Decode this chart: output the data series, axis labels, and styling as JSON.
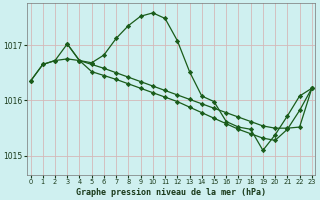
{
  "title": "Graphe pression niveau de la mer (hPa)",
  "bg_color": "#cff0f0",
  "grid_color": "#d4b8b8",
  "line_color": "#1a5c1a",
  "xlim": [
    -0.3,
    23.3
  ],
  "ylim": [
    1014.65,
    1017.75
  ],
  "yticks": [
    1015,
    1016,
    1017
  ],
  "xticks": [
    0,
    1,
    2,
    3,
    4,
    5,
    6,
    7,
    8,
    9,
    10,
    11,
    12,
    13,
    14,
    15,
    16,
    17,
    18,
    19,
    20,
    21,
    22,
    23
  ],
  "series1": {
    "x": [
      0,
      1,
      2,
      3,
      4,
      5,
      6,
      7,
      8,
      9,
      10,
      11,
      12,
      13,
      14,
      15,
      16,
      17,
      18,
      19,
      20,
      21,
      22,
      23
    ],
    "y": [
      1016.35,
      1016.65,
      1016.72,
      1016.75,
      1016.72,
      1016.65,
      1016.58,
      1016.5,
      1016.42,
      1016.34,
      1016.26,
      1016.18,
      1016.1,
      1016.02,
      1015.94,
      1015.86,
      1015.78,
      1015.7,
      1015.62,
      1015.54,
      1015.5,
      1015.5,
      1015.52,
      1016.22
    ]
  },
  "series2": {
    "x": [
      0,
      1,
      2,
      3,
      4,
      5,
      6,
      7,
      8,
      9,
      10,
      11,
      12,
      13,
      14,
      15,
      16,
      17,
      18,
      19,
      20,
      21,
      22,
      23
    ],
    "y": [
      1016.35,
      1016.65,
      1016.72,
      1017.02,
      1016.72,
      1016.68,
      1016.82,
      1017.12,
      1017.35,
      1017.52,
      1017.58,
      1017.48,
      1017.08,
      1016.52,
      1016.08,
      1015.98,
      1015.62,
      1015.52,
      1015.48,
      1015.1,
      1015.38,
      1015.72,
      1016.08,
      1016.22
    ]
  },
  "series3": {
    "x": [
      3,
      4,
      5,
      6,
      7,
      8,
      9,
      10,
      11,
      12,
      13,
      14,
      15,
      16,
      17,
      18,
      19,
      20,
      21,
      22,
      23
    ],
    "y": [
      1017.02,
      1016.72,
      1016.52,
      1016.45,
      1016.38,
      1016.3,
      1016.22,
      1016.14,
      1016.06,
      1015.98,
      1015.88,
      1015.78,
      1015.68,
      1015.58,
      1015.48,
      1015.4,
      1015.32,
      1015.28,
      1015.48,
      1015.82,
      1016.22
    ]
  }
}
